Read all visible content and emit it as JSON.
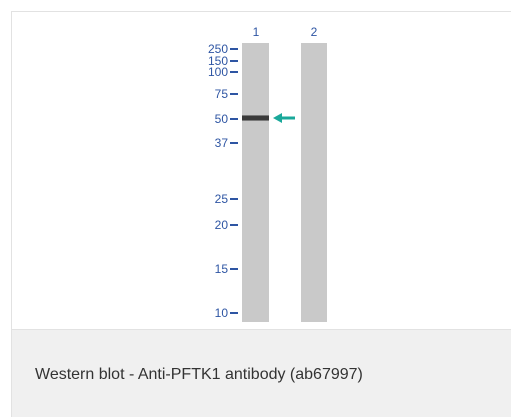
{
  "figure": {
    "lane_labels": [
      "1",
      "2"
    ],
    "markers": [
      "250",
      "150",
      "100",
      "75",
      "50",
      "37",
      "25",
      "20",
      "15",
      "10"
    ],
    "band_marker": "50",
    "colors": {
      "label_blue": "#2e55a3",
      "lane_gray": "#c9c9c9",
      "band_dark": "#3a3a3a",
      "arrow_teal": "#1aa89a",
      "caption_bg": "#f0f0f0"
    }
  },
  "caption": {
    "text": "Western blot - Anti-PFTK1 antibody (ab67997)"
  }
}
